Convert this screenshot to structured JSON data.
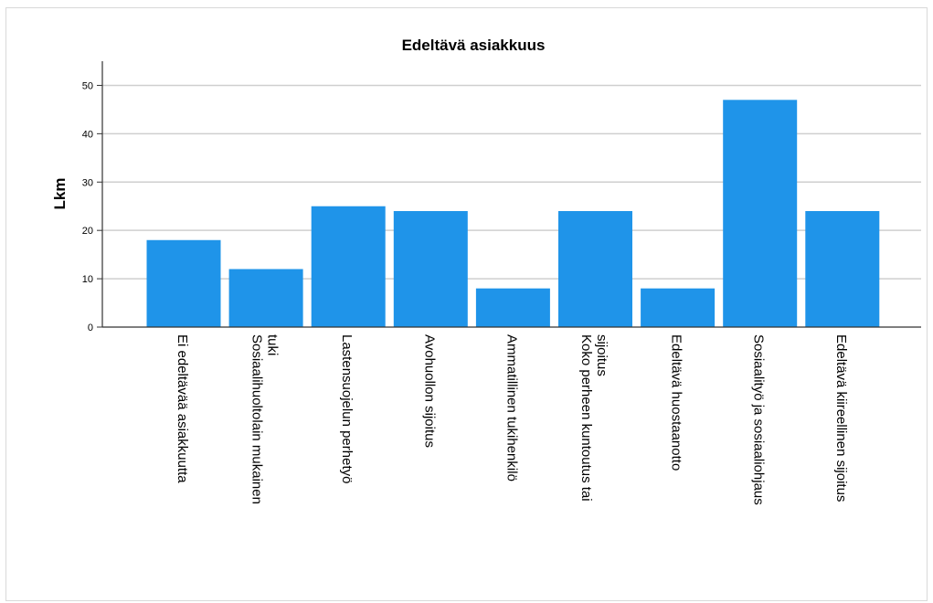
{
  "chart_data": {
    "type": "bar",
    "title": "Edeltävä asiakkuus",
    "xlabel": "",
    "ylabel": "Lkm",
    "ylim": [
      0,
      55
    ],
    "yticks": [
      0,
      10,
      20,
      30,
      40,
      50
    ],
    "grid": true,
    "bar_color": "#1f94e9",
    "categories": [
      [
        "Ei edeltävää asiakkuutta"
      ],
      [
        "Sosiaalihuoltolain mukainen",
        "tuki"
      ],
      [
        "Lastensuojelun perhetyö"
      ],
      [
        "Avohuollon sijoitus"
      ],
      [
        "Ammatillinen tukihenkilö"
      ],
      [
        "Koko perheen kuntoutus tai",
        "sijoitus"
      ],
      [
        "Edeltävä huostaanotto"
      ],
      [
        "Sosiaalityö ja sosiaaliohjaus"
      ],
      [
        "Edeltävä kiireellinen sijoitus"
      ]
    ],
    "values": [
      18,
      12,
      25,
      24,
      8,
      24,
      8,
      47,
      24
    ]
  }
}
